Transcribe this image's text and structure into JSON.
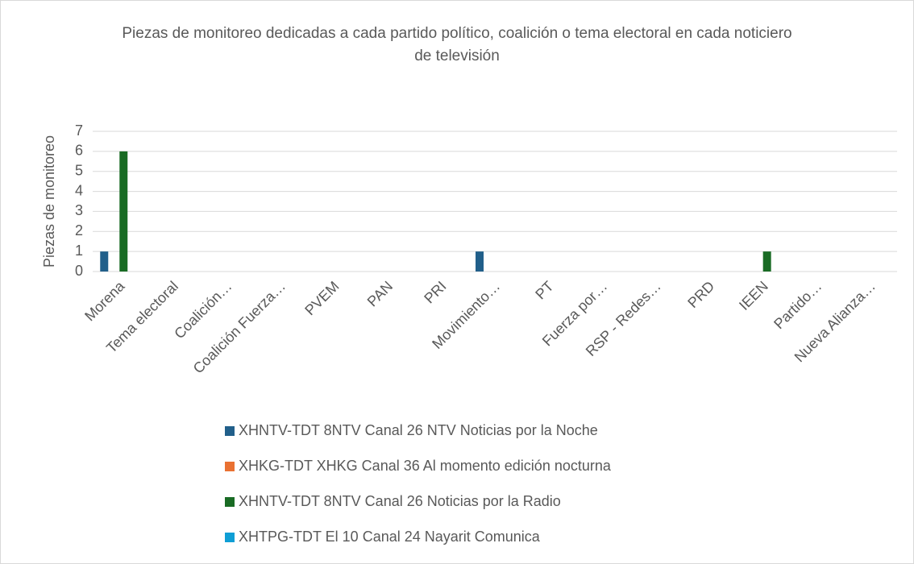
{
  "chart_data": {
    "type": "bar",
    "title": "Piezas de monitoreo dedicadas a cada partido político, coalición o tema electoral en cada noticiero de televisión",
    "y_label": "Piezas de monitoreo",
    "categories": [
      "Morena",
      "Tema electoral",
      "Coalición…",
      "Coalición Fuerza…",
      "PVEM",
      "PAN",
      "PRI",
      "Movimiento…",
      "PT",
      "Fuerza por…",
      "RSP - Redes…",
      "PRD",
      "IEEN",
      "Partido…",
      "Nueva Alianza…"
    ],
    "series": [
      {
        "name": "XHNTV-TDT 8NTV Canal 26 NTV Noticias por la Noche",
        "color": "#215f8a",
        "values": [
          1,
          0,
          0,
          0,
          0,
          0,
          0,
          1,
          0,
          0,
          0,
          0,
          0,
          0,
          0
        ]
      },
      {
        "name": "XHKG-TDT XHKG Canal 36 Al momento edición nocturna",
        "color": "#e97132",
        "values": [
          0,
          0,
          0,
          0,
          0,
          0,
          0,
          0,
          0,
          0,
          0,
          0,
          0,
          0,
          0
        ]
      },
      {
        "name": "XHNTV-TDT 8NTV Canal 26 Noticias por la Radio",
        "color": "#196b24",
        "values": [
          6,
          0,
          0,
          0,
          0,
          0,
          0,
          0,
          0,
          0,
          0,
          0,
          1,
          0,
          0
        ]
      },
      {
        "name": "XHTPG-TDT El 10 Canal 24 Nayarit Comunica",
        "color": "#0f9ed5",
        "values": [
          0,
          0,
          0,
          0,
          0,
          0,
          0,
          0,
          0,
          0,
          0,
          0,
          0,
          0,
          0
        ]
      }
    ],
    "ylim": [
      0,
      7
    ],
    "yticks": [
      0,
      1,
      2,
      3,
      4,
      5,
      6,
      7
    ],
    "grid": true,
    "legend": "bottom"
  }
}
